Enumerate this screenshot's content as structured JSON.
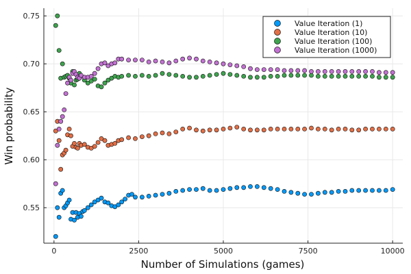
{
  "chart_data": {
    "type": "scatter",
    "xlabel": "Number of Simulations (games)",
    "ylabel": "Win probability",
    "xlim": [
      -300,
      10300
    ],
    "ylim": [
      0.513,
      0.758
    ],
    "xticks": [
      0,
      2500,
      5000,
      7500,
      10000
    ],
    "xtick_labels": [
      "0",
      "2500",
      "5000",
      "7500",
      "10000"
    ],
    "yticks": [
      0.55,
      0.6,
      0.65,
      0.7,
      0.75
    ],
    "ytick_labels": [
      "0.55",
      "0.60",
      "0.65",
      "0.70",
      "0.75"
    ],
    "grid": true,
    "legend_position": "top-right",
    "series": [
      {
        "name": "Value Iteration (1)",
        "color": "#009AFA",
        "points": [
          [
            50,
            0.52
          ],
          [
            100,
            0.55
          ],
          [
            150,
            0.54
          ],
          [
            200,
            0.565
          ],
          [
            250,
            0.568
          ],
          [
            300,
            0.55
          ],
          [
            350,
            0.552
          ],
          [
            400,
            0.555
          ],
          [
            450,
            0.558
          ],
          [
            500,
            0.538
          ],
          [
            550,
            0.545
          ],
          [
            600,
            0.537
          ],
          [
            650,
            0.545
          ],
          [
            700,
            0.54
          ],
          [
            750,
            0.544
          ],
          [
            800,
            0.541
          ],
          [
            850,
            0.546
          ],
          [
            900,
            0.547
          ],
          [
            1000,
            0.55
          ],
          [
            1100,
            0.553
          ],
          [
            1200,
            0.556
          ],
          [
            1300,
            0.558
          ],
          [
            1400,
            0.56
          ],
          [
            1500,
            0.556
          ],
          [
            1600,
            0.555
          ],
          [
            1700,
            0.552
          ],
          [
            1800,
            0.551
          ],
          [
            1900,
            0.553
          ],
          [
            2000,
            0.556
          ],
          [
            2100,
            0.559
          ],
          [
            2200,
            0.563
          ],
          [
            2300,
            0.564
          ],
          [
            2400,
            0.561
          ],
          [
            2600,
            0.561
          ],
          [
            2800,
            0.562
          ],
          [
            3000,
            0.563
          ],
          [
            3200,
            0.564
          ],
          [
            3400,
            0.565
          ],
          [
            3600,
            0.567
          ],
          [
            3800,
            0.568
          ],
          [
            4000,
            0.569
          ],
          [
            4200,
            0.569
          ],
          [
            4400,
            0.57
          ],
          [
            4600,
            0.568
          ],
          [
            4800,
            0.568
          ],
          [
            5000,
            0.569
          ],
          [
            5200,
            0.57
          ],
          [
            5400,
            0.571
          ],
          [
            5600,
            0.571
          ],
          [
            5800,
            0.572
          ],
          [
            6000,
            0.572
          ],
          [
            6200,
            0.571
          ],
          [
            6400,
            0.57
          ],
          [
            6600,
            0.569
          ],
          [
            6800,
            0.567
          ],
          [
            7000,
            0.566
          ],
          [
            7200,
            0.565
          ],
          [
            7400,
            0.564
          ],
          [
            7600,
            0.564
          ],
          [
            7800,
            0.565
          ],
          [
            8000,
            0.566
          ],
          [
            8200,
            0.566
          ],
          [
            8400,
            0.567
          ],
          [
            8600,
            0.567
          ],
          [
            8800,
            0.568
          ],
          [
            9000,
            0.568
          ],
          [
            9200,
            0.568
          ],
          [
            9400,
            0.568
          ],
          [
            9600,
            0.568
          ],
          [
            9800,
            0.568
          ],
          [
            10000,
            0.569
          ]
        ]
      },
      {
        "name": "Value Iteration (10)",
        "color": "#E26F46",
        "points": [
          [
            50,
            0.63
          ],
          [
            100,
            0.64
          ],
          [
            150,
            0.62
          ],
          [
            200,
            0.59
          ],
          [
            250,
            0.605
          ],
          [
            300,
            0.607
          ],
          [
            350,
            0.61
          ],
          [
            400,
            0.626
          ],
          [
            450,
            0.632
          ],
          [
            500,
            0.625
          ],
          [
            550,
            0.614
          ],
          [
            600,
            0.617
          ],
          [
            650,
            0.613
          ],
          [
            700,
            0.612
          ],
          [
            750,
            0.617
          ],
          [
            800,
            0.615
          ],
          [
            900,
            0.616
          ],
          [
            1000,
            0.613
          ],
          [
            1100,
            0.612
          ],
          [
            1200,
            0.614
          ],
          [
            1300,
            0.618
          ],
          [
            1400,
            0.622
          ],
          [
            1500,
            0.62
          ],
          [
            1600,
            0.615
          ],
          [
            1700,
            0.616
          ],
          [
            1800,
            0.617
          ],
          [
            1900,
            0.62
          ],
          [
            2000,
            0.621
          ],
          [
            2200,
            0.623
          ],
          [
            2400,
            0.622
          ],
          [
            2600,
            0.624
          ],
          [
            2800,
            0.625
          ],
          [
            3000,
            0.627
          ],
          [
            3200,
            0.628
          ],
          [
            3400,
            0.627
          ],
          [
            3600,
            0.629
          ],
          [
            3800,
            0.632
          ],
          [
            4000,
            0.633
          ],
          [
            4200,
            0.631
          ],
          [
            4400,
            0.63
          ],
          [
            4600,
            0.631
          ],
          [
            4800,
            0.631
          ],
          [
            5000,
            0.632
          ],
          [
            5200,
            0.633
          ],
          [
            5400,
            0.634
          ],
          [
            5600,
            0.632
          ],
          [
            5800,
            0.631
          ],
          [
            6000,
            0.631
          ],
          [
            6200,
            0.631
          ],
          [
            6400,
            0.632
          ],
          [
            6600,
            0.632
          ],
          [
            6800,
            0.632
          ],
          [
            7000,
            0.632
          ],
          [
            7200,
            0.632
          ],
          [
            7400,
            0.632
          ],
          [
            7600,
            0.633
          ],
          [
            7800,
            0.632
          ],
          [
            8000,
            0.632
          ],
          [
            8200,
            0.631
          ],
          [
            8400,
            0.632
          ],
          [
            8600,
            0.632
          ],
          [
            8800,
            0.631
          ],
          [
            9000,
            0.631
          ],
          [
            9200,
            0.632
          ],
          [
            9400,
            0.632
          ],
          [
            9600,
            0.632
          ],
          [
            9800,
            0.632
          ],
          [
            10000,
            0.632
          ]
        ]
      },
      {
        "name": "Value Iteration (100)",
        "color": "#3EA44E",
        "points": [
          [
            50,
            0.74
          ],
          [
            100,
            0.75
          ],
          [
            150,
            0.714
          ],
          [
            200,
            0.685
          ],
          [
            250,
            0.7
          ],
          [
            300,
            0.686
          ],
          [
            350,
            0.687
          ],
          [
            400,
            0.688
          ],
          [
            450,
            0.685
          ],
          [
            500,
            0.68
          ],
          [
            550,
            0.692
          ],
          [
            600,
            0.678
          ],
          [
            650,
            0.683
          ],
          [
            700,
            0.684
          ],
          [
            750,
            0.69
          ],
          [
            800,
            0.687
          ],
          [
            900,
            0.683
          ],
          [
            1000,
            0.68
          ],
          [
            1100,
            0.682
          ],
          [
            1200,
            0.684
          ],
          [
            1300,
            0.677
          ],
          [
            1400,
            0.676
          ],
          [
            1500,
            0.68
          ],
          [
            1600,
            0.683
          ],
          [
            1700,
            0.685
          ],
          [
            1800,
            0.687
          ],
          [
            1900,
            0.686
          ],
          [
            2000,
            0.687
          ],
          [
            2200,
            0.688
          ],
          [
            2400,
            0.687
          ],
          [
            2600,
            0.688
          ],
          [
            2800,
            0.687
          ],
          [
            3000,
            0.688
          ],
          [
            3200,
            0.69
          ],
          [
            3400,
            0.689
          ],
          [
            3600,
            0.688
          ],
          [
            3800,
            0.687
          ],
          [
            4000,
            0.686
          ],
          [
            4200,
            0.686
          ],
          [
            4400,
            0.687
          ],
          [
            4600,
            0.688
          ],
          [
            4800,
            0.689
          ],
          [
            5000,
            0.69
          ],
          [
            5200,
            0.689
          ],
          [
            5400,
            0.688
          ],
          [
            5600,
            0.687
          ],
          [
            5800,
            0.686
          ],
          [
            6000,
            0.686
          ],
          [
            6200,
            0.686
          ],
          [
            6400,
            0.687
          ],
          [
            6600,
            0.687
          ],
          [
            6800,
            0.688
          ],
          [
            7000,
            0.688
          ],
          [
            7200,
            0.688
          ],
          [
            7400,
            0.688
          ],
          [
            7600,
            0.688
          ],
          [
            7800,
            0.687
          ],
          [
            8000,
            0.687
          ],
          [
            8200,
            0.687
          ],
          [
            8400,
            0.687
          ],
          [
            8600,
            0.687
          ],
          [
            8800,
            0.687
          ],
          [
            9000,
            0.687
          ],
          [
            9200,
            0.687
          ],
          [
            9400,
            0.687
          ],
          [
            9600,
            0.686
          ],
          [
            9800,
            0.686
          ],
          [
            10000,
            0.686
          ]
        ]
      },
      {
        "name": "Value Iteration (1000)",
        "color": "#C271D2",
        "points": [
          [
            50,
            0.575
          ],
          [
            100,
            0.615
          ],
          [
            150,
            0.632
          ],
          [
            200,
            0.64
          ],
          [
            250,
            0.645
          ],
          [
            300,
            0.652
          ],
          [
            350,
            0.669
          ],
          [
            400,
            0.68
          ],
          [
            450,
            0.686
          ],
          [
            500,
            0.683
          ],
          [
            550,
            0.69
          ],
          [
            600,
            0.692
          ],
          [
            650,
            0.689
          ],
          [
            700,
            0.686
          ],
          [
            750,
            0.685
          ],
          [
            800,
            0.688
          ],
          [
            900,
            0.686
          ],
          [
            1000,
            0.686
          ],
          [
            1100,
            0.687
          ],
          [
            1200,
            0.69
          ],
          [
            1300,
            0.695
          ],
          [
            1400,
            0.7
          ],
          [
            1500,
            0.701
          ],
          [
            1600,
            0.698
          ],
          [
            1700,
            0.7
          ],
          [
            1800,
            0.701
          ],
          [
            1900,
            0.705
          ],
          [
            2000,
            0.705
          ],
          [
            2200,
            0.704
          ],
          [
            2400,
            0.704
          ],
          [
            2600,
            0.704
          ],
          [
            2800,
            0.702
          ],
          [
            3000,
            0.703
          ],
          [
            3200,
            0.702
          ],
          [
            3400,
            0.701
          ],
          [
            3600,
            0.703
          ],
          [
            3800,
            0.705
          ],
          [
            4000,
            0.706
          ],
          [
            4200,
            0.705
          ],
          [
            4400,
            0.703
          ],
          [
            4600,
            0.702
          ],
          [
            4800,
            0.701
          ],
          [
            5000,
            0.7
          ],
          [
            5200,
            0.699
          ],
          [
            5400,
            0.698
          ],
          [
            5600,
            0.697
          ],
          [
            5800,
            0.695
          ],
          [
            6000,
            0.694
          ],
          [
            6200,
            0.694
          ],
          [
            6400,
            0.694
          ],
          [
            6600,
            0.694
          ],
          [
            6800,
            0.693
          ],
          [
            7000,
            0.693
          ],
          [
            7200,
            0.693
          ],
          [
            7400,
            0.693
          ],
          [
            7600,
            0.692
          ],
          [
            7800,
            0.692
          ],
          [
            8000,
            0.692
          ],
          [
            8200,
            0.692
          ],
          [
            8400,
            0.692
          ],
          [
            8600,
            0.692
          ],
          [
            8800,
            0.692
          ],
          [
            9000,
            0.692
          ],
          [
            9200,
            0.692
          ],
          [
            9400,
            0.692
          ],
          [
            9600,
            0.691
          ],
          [
            9800,
            0.691
          ],
          [
            10000,
            0.691
          ]
        ]
      }
    ]
  }
}
